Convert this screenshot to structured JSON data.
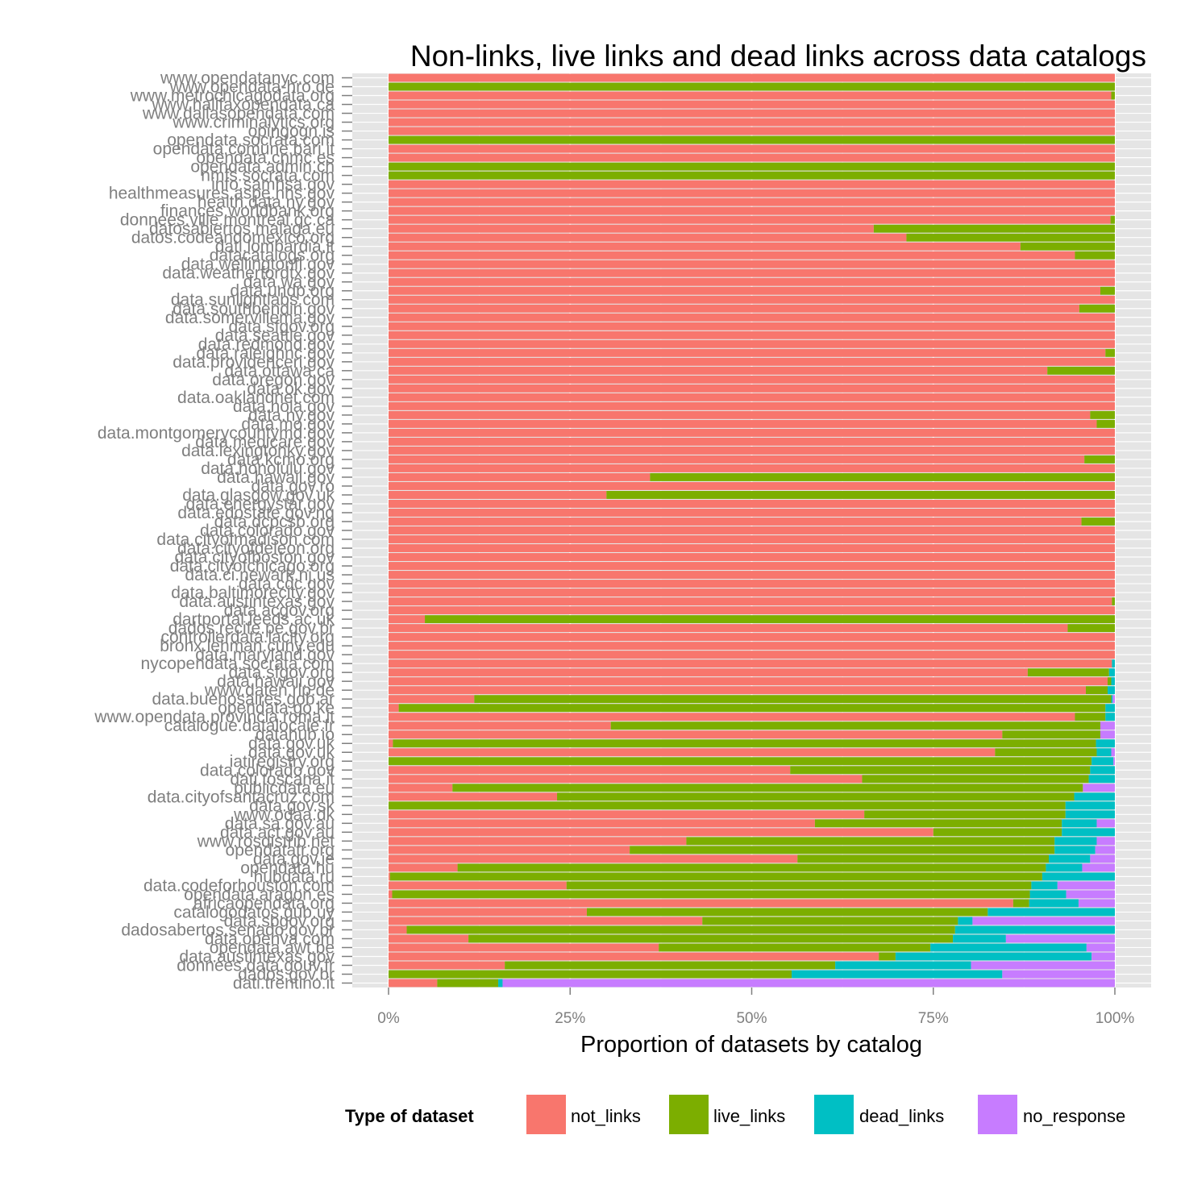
{
  "chart_data": {
    "type": "bar",
    "orientation": "horizontal",
    "stacked": true,
    "title": "Non-links, live links and dead links across data catalogs",
    "xlabel": "Proportion of datasets by catalog",
    "ylabel": "",
    "xlim": [
      0,
      1
    ],
    "x_ticks": [
      "0%",
      "25%",
      "50%",
      "75%",
      "100%"
    ],
    "x_tick_values": [
      0,
      0.25,
      0.5,
      0.75,
      1
    ],
    "grid": true,
    "legend": {
      "title": "Type of dataset",
      "position": "bottom",
      "entries": [
        "not_links",
        "live_links",
        "dead_links",
        "no_response"
      ]
    },
    "colors": {
      "not_links": "#F8766D",
      "live_links": "#7CAE00",
      "dead_links": "#00BFC4",
      "no_response": "#C77CFF",
      "panel": "#E5E5E5",
      "grid": "#FFFFFF"
    },
    "bars": [
      {
        "label": "www.opendatanyc.com",
        "values": [
          1,
          0,
          0,
          0
        ]
      },
      {
        "label": "www.opendata-hro.de",
        "values": [
          0,
          1,
          0,
          0
        ]
      },
      {
        "label": "www.metrochicagodata.org",
        "values": [
          0.995,
          0.005,
          0,
          0
        ]
      },
      {
        "label": "www.halifaxopendata.ca",
        "values": [
          1,
          0,
          0,
          0
        ]
      },
      {
        "label": "www.dallasopendata.com",
        "values": [
          1,
          0,
          0,
          0
        ]
      },
      {
        "label": "www.criminalytics.org",
        "values": [
          1,
          0,
          0,
          0
        ]
      },
      {
        "label": "opingogn.is",
        "values": [
          1,
          0,
          0,
          0
        ]
      },
      {
        "label": "opendata.socrata.com",
        "values": [
          0,
          1,
          0,
          0
        ]
      },
      {
        "label": "opendata.comune.bari.it",
        "values": [
          1,
          0,
          0,
          0
        ]
      },
      {
        "label": "opendata.cnmc.es",
        "values": [
          1,
          0,
          0,
          0
        ]
      },
      {
        "label": "opendata.admin.ch",
        "values": [
          0,
          1,
          0,
          0
        ]
      },
      {
        "label": "nmfs.socrata.com",
        "values": [
          0,
          1,
          0,
          0
        ]
      },
      {
        "label": "info.samhsa.gov",
        "values": [
          1,
          0,
          0,
          0
        ]
      },
      {
        "label": "healthmeasures.aspe.hhs.gov",
        "values": [
          1,
          0,
          0,
          0
        ]
      },
      {
        "label": "health.data.ny.gov",
        "values": [
          1,
          0,
          0,
          0
        ]
      },
      {
        "label": "finances.worldbank.org",
        "values": [
          1,
          0,
          0,
          0
        ]
      },
      {
        "label": "donnees.ville.montreal.qc.ca",
        "values": [
          0.994,
          0.006,
          0,
          0
        ]
      },
      {
        "label": "datosabiertos.malaga.eu",
        "values": [
          0.668,
          0.332,
          0,
          0
        ]
      },
      {
        "label": "datos.codeandomexico.org",
        "values": [
          0.713,
          0.287,
          0,
          0
        ]
      },
      {
        "label": "dati.lombardia.it",
        "values": [
          0.87,
          0.13,
          0,
          0
        ]
      },
      {
        "label": "datacatalogs.org",
        "values": [
          0.945,
          0.055,
          0,
          0
        ]
      },
      {
        "label": "data.wellingtonfl.gov",
        "values": [
          1,
          0,
          0,
          0
        ]
      },
      {
        "label": "data.weatherfordtx.gov",
        "values": [
          1,
          0,
          0,
          0
        ]
      },
      {
        "label": "data.wa.gov",
        "values": [
          1,
          0,
          0,
          0
        ]
      },
      {
        "label": "data.undp.org",
        "values": [
          0.98,
          0.02,
          0,
          0
        ]
      },
      {
        "label": "data.sunlightlabs.com",
        "values": [
          1,
          0,
          0,
          0
        ]
      },
      {
        "label": "data.southbendin.gov",
        "values": [
          0.951,
          0.049,
          0,
          0
        ]
      },
      {
        "label": "data.somervillema.gov",
        "values": [
          1,
          0,
          0,
          0
        ]
      },
      {
        "label": "data.sfgov.org",
        "values": [
          1,
          0,
          0,
          0
        ]
      },
      {
        "label": "data.seattle.gov",
        "values": [
          1,
          0,
          0,
          0
        ]
      },
      {
        "label": "data.redmond.gov",
        "values": [
          1,
          0,
          0,
          0
        ]
      },
      {
        "label": "data.raleighnc.gov",
        "values": [
          0.987,
          0.013,
          0,
          0
        ]
      },
      {
        "label": "data.providenceri.gov",
        "values": [
          1,
          0,
          0,
          0
        ]
      },
      {
        "label": "data.ottawa.ca",
        "values": [
          0.907,
          0.093,
          0,
          0
        ]
      },
      {
        "label": "data.oregon.gov",
        "values": [
          1,
          0,
          0,
          0
        ]
      },
      {
        "label": "data.ok.gov",
        "values": [
          1,
          0,
          0,
          0
        ]
      },
      {
        "label": "data.oaklandnet.com",
        "values": [
          1,
          0,
          0,
          0
        ]
      },
      {
        "label": "data.nola.gov",
        "values": [
          1,
          0,
          0,
          0
        ]
      },
      {
        "label": "data.ny.gov",
        "values": [
          0.966,
          0.034,
          0,
          0
        ]
      },
      {
        "label": "data.mo.gov",
        "values": [
          0.975,
          0.025,
          0,
          0
        ]
      },
      {
        "label": "data.montgomerycountymd.gov",
        "values": [
          1,
          0,
          0,
          0
        ]
      },
      {
        "label": "data.medicare.gov",
        "values": [
          1,
          0,
          0,
          0
        ]
      },
      {
        "label": "data.lexingtonky.gov",
        "values": [
          1,
          0,
          0,
          0
        ]
      },
      {
        "label": "data.kcmo.org",
        "values": [
          0.958,
          0.042,
          0,
          0
        ]
      },
      {
        "label": "data.honolulu.gov",
        "values": [
          1,
          0,
          0,
          0
        ]
      },
      {
        "label": "data.hawaii.gov",
        "values": [
          0.36,
          0.64,
          0,
          0
        ]
      },
      {
        "label": "data.gov.ro",
        "values": [
          1,
          0,
          0,
          0
        ]
      },
      {
        "label": "data.glasgow.gov.uk",
        "values": [
          0.3,
          0.7,
          0,
          0
        ]
      },
      {
        "label": "data.energystar.gov",
        "values": [
          1,
          0,
          0,
          0
        ]
      },
      {
        "label": "data.edostate.gov.ng",
        "values": [
          1,
          0,
          0,
          0
        ]
      },
      {
        "label": "data.dcpcsb.org",
        "values": [
          0.954,
          0.046,
          0,
          0
        ]
      },
      {
        "label": "data.colorado.gov",
        "values": [
          1,
          0,
          0,
          0
        ]
      },
      {
        "label": "data.cityofmadison.com",
        "values": [
          1,
          0,
          0,
          0
        ]
      },
      {
        "label": "data.cityofdeleon.org",
        "values": [
          1,
          0,
          0,
          0
        ]
      },
      {
        "label": "data.cityofboston.gov",
        "values": [
          1,
          0,
          0,
          0
        ]
      },
      {
        "label": "data.cityofchicago.org",
        "values": [
          1,
          0,
          0,
          0
        ]
      },
      {
        "label": "data.ci.newark.nj.us",
        "values": [
          1,
          0,
          0,
          0
        ]
      },
      {
        "label": "data.cdc.gov",
        "values": [
          1,
          0,
          0,
          0
        ]
      },
      {
        "label": "data.baltimorecity.gov",
        "values": [
          1,
          0,
          0,
          0
        ]
      },
      {
        "label": "data.austintexas.gov",
        "values": [
          0.996,
          0.004,
          0,
          0
        ]
      },
      {
        "label": "data.acgov.org",
        "values": [
          1,
          0,
          0,
          0
        ]
      },
      {
        "label": "dartportal.leeds.ac.uk",
        "values": [
          0.05,
          0.95,
          0,
          0
        ]
      },
      {
        "label": "dados.recife.pe.gov.br",
        "values": [
          0.935,
          0.065,
          0,
          0
        ]
      },
      {
        "label": "controllerdata.lacity.org",
        "values": [
          1,
          0,
          0,
          0
        ]
      },
      {
        "label": "bronx.lehman.cuny.edu",
        "values": [
          1,
          0,
          0,
          0
        ]
      },
      {
        "label": "data.maryland.gov",
        "values": [
          1,
          0,
          0,
          0
        ]
      },
      {
        "label": "nycopendata.socrata.com",
        "values": [
          0.996,
          0,
          0.004,
          0
        ]
      },
      {
        "label": "data.sfgov.org",
        "values": [
          0.88,
          0.112,
          0.008,
          0
        ]
      },
      {
        "label": "data.hawaii.gov",
        "values": [
          0.99,
          0.005,
          0.005,
          0
        ]
      },
      {
        "label": "www.daten.rlp.de",
        "values": [
          0.96,
          0.03,
          0.01,
          0
        ]
      },
      {
        "label": "data.buenosaires.gob.ar",
        "values": [
          0.118,
          0.877,
          0.002,
          0.003
        ]
      },
      {
        "label": "opendata.go.ke",
        "values": [
          0.014,
          0.973,
          0.013,
          0
        ]
      },
      {
        "label": "www.opendata.provincia.roma.it",
        "values": [
          0.945,
          0.042,
          0.013,
          0
        ]
      },
      {
        "label": "catalogue.datalocale.fr",
        "values": [
          0.306,
          0.674,
          0,
          0.02
        ]
      },
      {
        "label": "datahub.io",
        "values": [
          0.845,
          0.135,
          0,
          0.02
        ]
      },
      {
        "label": "data.gov.uk",
        "values": [
          0.006,
          0.968,
          0.026,
          0
        ]
      },
      {
        "label": "data.gov.uk",
        "values": [
          0.835,
          0.14,
          0.02,
          0.005
        ]
      },
      {
        "label": "iatiregistry.org",
        "values": [
          0,
          0.968,
          0.03,
          0.002
        ]
      },
      {
        "label": "data.colorado.gov",
        "values": [
          0.553,
          0.413,
          0.034,
          0
        ]
      },
      {
        "label": "dati.toscana.it",
        "values": [
          0.652,
          0.312,
          0.036,
          0
        ]
      },
      {
        "label": "publicdata.eu",
        "values": [
          0.088,
          0.868,
          0,
          0.044
        ]
      },
      {
        "label": "data.cityofsantacruz.com",
        "values": [
          0.232,
          0.712,
          0.056,
          0
        ]
      },
      {
        "label": "data.gov.sk",
        "values": [
          0,
          0.932,
          0.068,
          0
        ]
      },
      {
        "label": "www.odaa.dk",
        "values": [
          0.655,
          0.277,
          0.068,
          0
        ]
      },
      {
        "label": "data.sa.gov.au",
        "values": [
          0.587,
          0.34,
          0.048,
          0.025
        ]
      },
      {
        "label": "data.act.gov.au",
        "values": [
          0.75,
          0.177,
          0.073,
          0
        ]
      },
      {
        "label": "www.rosdistrib.net",
        "values": [
          0.41,
          0.507,
          0.058,
          0.025
        ]
      },
      {
        "label": "opendatatr.org",
        "values": [
          0.332,
          0.585,
          0.056,
          0.027
        ]
      },
      {
        "label": "data.gov.ie",
        "values": [
          0.563,
          0.346,
          0.057,
          0.034
        ]
      },
      {
        "label": "opendata.hu",
        "values": [
          0.095,
          0.81,
          0.05,
          0.045
        ]
      },
      {
        "label": "hubdata.ru",
        "values": [
          0.002,
          0.898,
          0.1,
          0
        ]
      },
      {
        "label": "data.codeforhouston.com",
        "values": [
          0.245,
          0.64,
          0.036,
          0.079
        ]
      },
      {
        "label": "opendata.aragon.es",
        "values": [
          0.005,
          0.878,
          0.05,
          0.067
        ]
      },
      {
        "label": "africaopendata.org",
        "values": [
          0.86,
          0.022,
          0.068,
          0.05
        ]
      },
      {
        "label": "catalogodatos.gub.uy",
        "values": [
          0.273,
          0.552,
          0.175,
          0
        ]
      },
      {
        "label": "data.sbgov.org",
        "values": [
          0.432,
          0.352,
          0.02,
          0.196
        ]
      },
      {
        "label": "dadosabertos.senado.gov.br",
        "values": [
          0.025,
          0.755,
          0.22,
          0
        ]
      },
      {
        "label": "data.openva.com",
        "values": [
          0.11,
          0.667,
          0.073,
          0.15
        ]
      },
      {
        "label": "opendata.awt.be",
        "values": [
          0.372,
          0.374,
          0.215,
          0.039
        ]
      },
      {
        "label": "data.austintexas.gov",
        "values": [
          0.675,
          0.023,
          0.27,
          0.032
        ]
      },
      {
        "label": "donnees.data.gouv.fr",
        "values": [
          0.16,
          0.455,
          0.187,
          0.198
        ]
      },
      {
        "label": "dados.gov.br",
        "values": [
          0,
          0.555,
          0.29,
          0.155
        ]
      },
      {
        "label": "dati.trentino.it",
        "values": [
          0.067,
          0.084,
          0.006,
          0.843
        ]
      }
    ]
  }
}
